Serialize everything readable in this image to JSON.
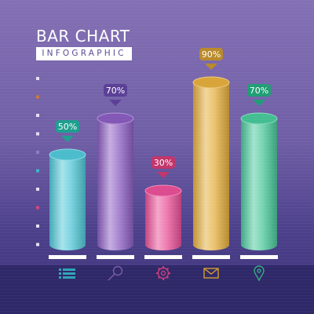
{
  "header": {
    "title": "BAR CHART",
    "subtitle": "INFOGRAPHIC"
  },
  "chart_data": {
    "type": "bar",
    "categories": [],
    "values": [
      50,
      70,
      30,
      90,
      70
    ],
    "labels": [
      "50%",
      "70%",
      "30%",
      "90%",
      "70%"
    ],
    "ylim": [
      0,
      100
    ],
    "colors": [
      "#4fc6d6",
      "#8a5cc0",
      "#e84f96",
      "#e3ad3c",
      "#48c79a"
    ],
    "badge_colors": [
      "#1e9e8e",
      "#5a3e96",
      "#c2346a",
      "#b98a2a",
      "#1e9e73"
    ],
    "icons": [
      "list-icon",
      "search-icon",
      "gear-icon",
      "mail-icon",
      "location-pin-icon"
    ],
    "icon_colors": [
      "#2fa3b8",
      "#7a5aa8",
      "#c83d7a",
      "#d49a32",
      "#35a982"
    ],
    "axis_marker_colors": [
      "#e6dff5",
      "#c97a3e",
      "#e6dff5",
      "#e6dff5",
      "#8f7cc9",
      "#3fb5c9",
      "#e6dff5",
      "#d0457f",
      "#e6dff5",
      "#e6dff5"
    ]
  }
}
